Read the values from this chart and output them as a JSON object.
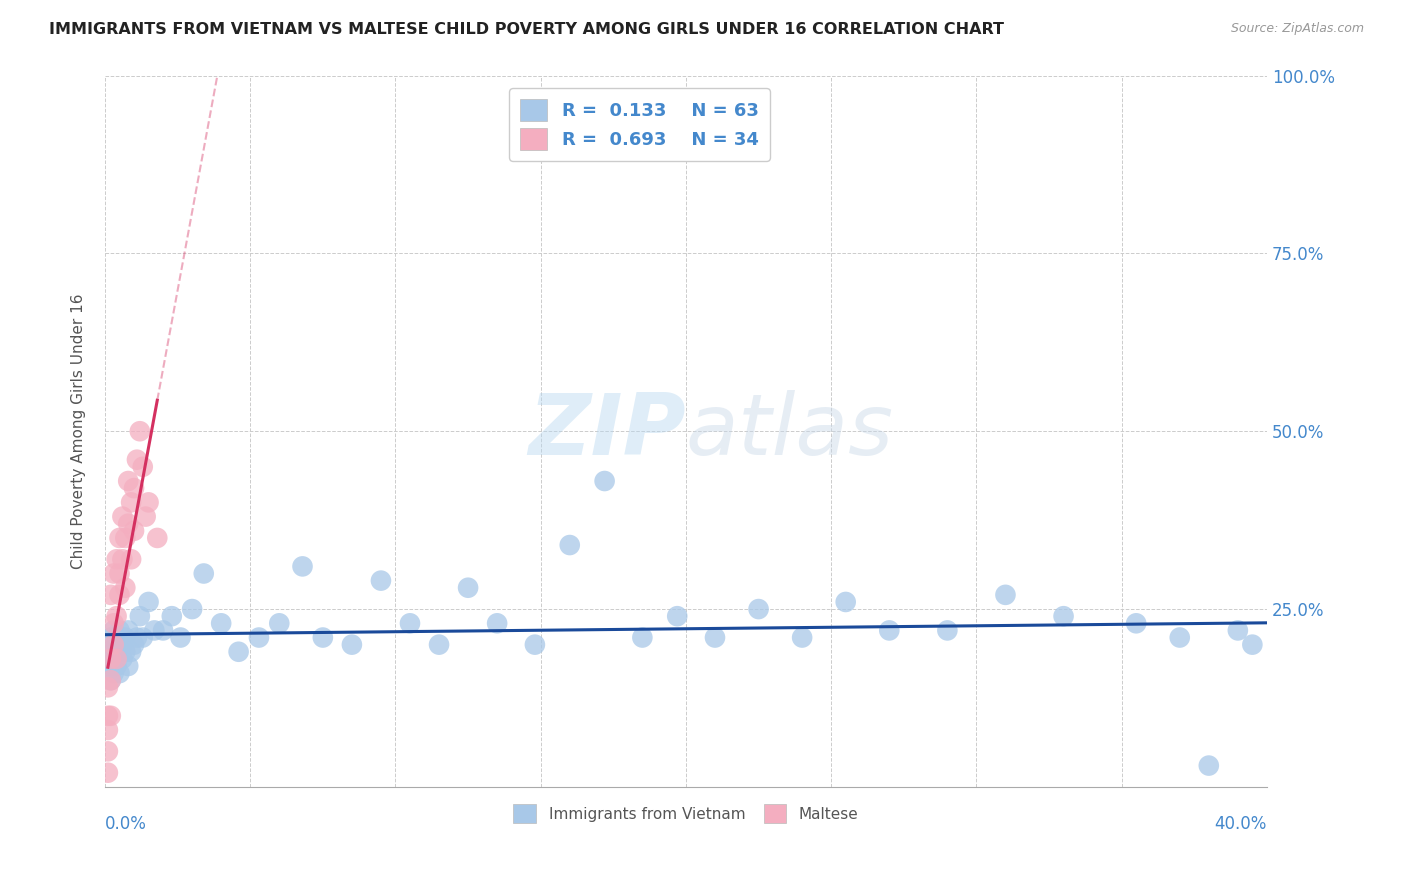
{
  "title": "IMMIGRANTS FROM VIETNAM VS MALTESE CHILD POVERTY AMONG GIRLS UNDER 16 CORRELATION CHART",
  "source": "Source: ZipAtlas.com",
  "ylabel": "Child Poverty Among Girls Under 16",
  "xlim": [
    0.0,
    0.4
  ],
  "ylim": [
    0.0,
    1.0
  ],
  "r_vietnam": 0.133,
  "n_vietnam": 63,
  "r_maltese": 0.693,
  "n_maltese": 34,
  "color_vietnam": "#a8c8e8",
  "color_maltese": "#f4aec0",
  "line_color_vietnam": "#1a4a9a",
  "line_color_maltese": "#d43060",
  "watermark_zip": "ZIP",
  "watermark_atlas": "atlas",
  "vietnam_x": [
    0.001,
    0.001,
    0.002,
    0.002,
    0.002,
    0.003,
    0.003,
    0.003,
    0.003,
    0.004,
    0.004,
    0.004,
    0.005,
    0.005,
    0.005,
    0.006,
    0.006,
    0.007,
    0.007,
    0.008,
    0.008,
    0.009,
    0.01,
    0.011,
    0.012,
    0.013,
    0.015,
    0.017,
    0.02,
    0.023,
    0.026,
    0.03,
    0.034,
    0.04,
    0.046,
    0.053,
    0.06,
    0.068,
    0.075,
    0.085,
    0.095,
    0.105,
    0.115,
    0.125,
    0.135,
    0.148,
    0.16,
    0.172,
    0.185,
    0.197,
    0.21,
    0.225,
    0.24,
    0.255,
    0.27,
    0.29,
    0.31,
    0.33,
    0.355,
    0.37,
    0.38,
    0.39,
    0.395
  ],
  "vietnam_y": [
    0.19,
    0.17,
    0.21,
    0.18,
    0.15,
    0.22,
    0.19,
    0.16,
    0.2,
    0.21,
    0.17,
    0.19,
    0.2,
    0.16,
    0.22,
    0.18,
    0.2,
    0.21,
    0.19,
    0.17,
    0.22,
    0.19,
    0.2,
    0.21,
    0.24,
    0.21,
    0.26,
    0.22,
    0.22,
    0.24,
    0.21,
    0.25,
    0.3,
    0.23,
    0.19,
    0.21,
    0.23,
    0.31,
    0.21,
    0.2,
    0.29,
    0.23,
    0.2,
    0.28,
    0.23,
    0.2,
    0.34,
    0.43,
    0.21,
    0.24,
    0.21,
    0.25,
    0.21,
    0.26,
    0.22,
    0.22,
    0.27,
    0.24,
    0.23,
    0.21,
    0.03,
    0.22,
    0.2
  ],
  "maltese_x": [
    0.001,
    0.001,
    0.001,
    0.001,
    0.001,
    0.002,
    0.002,
    0.002,
    0.002,
    0.003,
    0.003,
    0.003,
    0.004,
    0.004,
    0.004,
    0.005,
    0.005,
    0.005,
    0.006,
    0.006,
    0.007,
    0.007,
    0.008,
    0.008,
    0.009,
    0.009,
    0.01,
    0.01,
    0.011,
    0.012,
    0.013,
    0.014,
    0.015,
    0.018
  ],
  "maltese_y": [
    0.05,
    0.08,
    0.02,
    0.14,
    0.1,
    0.1,
    0.18,
    0.27,
    0.15,
    0.23,
    0.3,
    0.2,
    0.24,
    0.32,
    0.18,
    0.3,
    0.35,
    0.27,
    0.32,
    0.38,
    0.28,
    0.35,
    0.37,
    0.43,
    0.32,
    0.4,
    0.36,
    0.42,
    0.46,
    0.5,
    0.45,
    0.38,
    0.4,
    0.35
  ]
}
